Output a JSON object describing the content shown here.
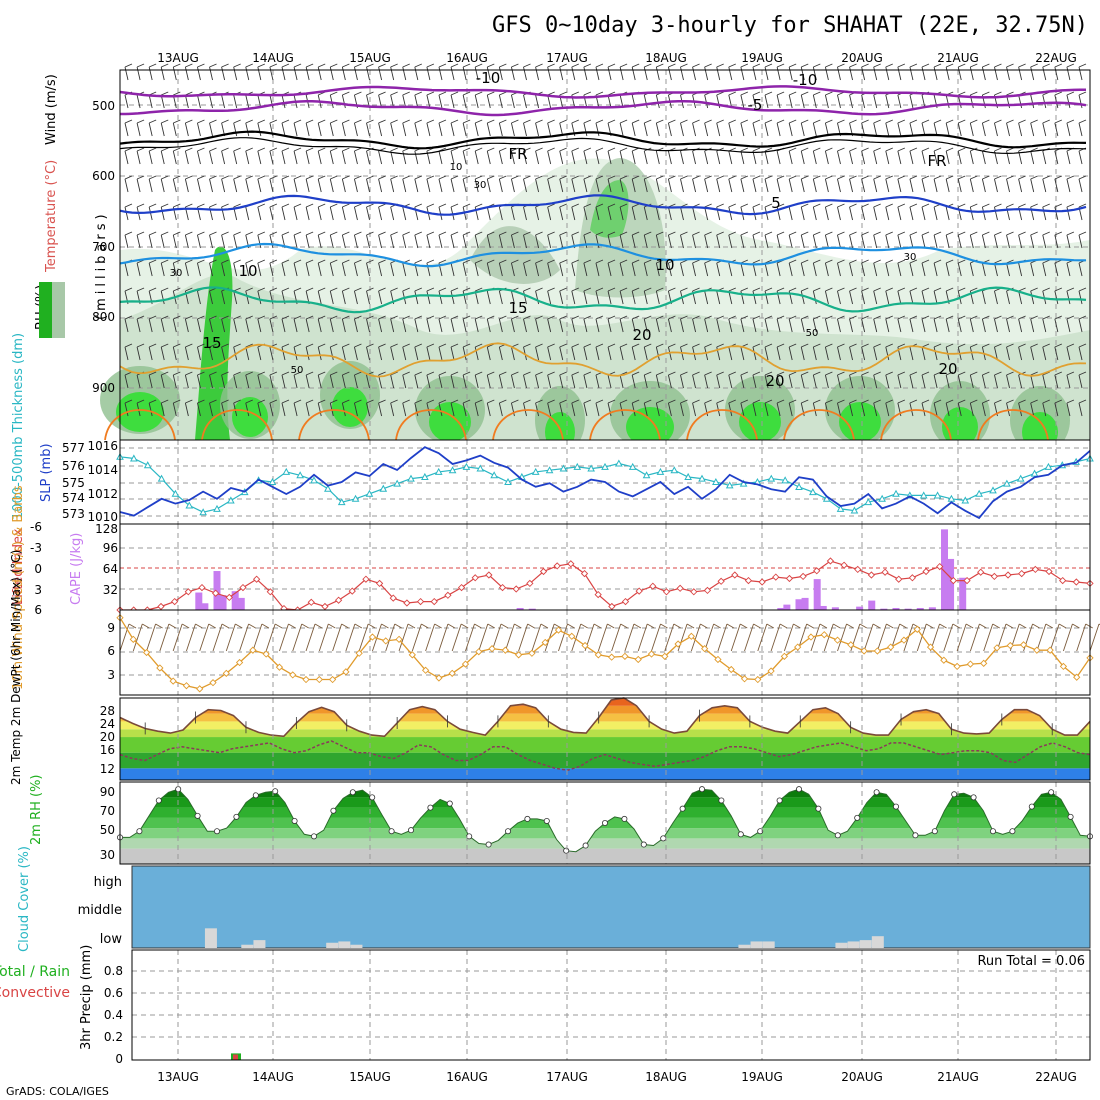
{
  "title": "GFS 0~10day 3-hourly for SHAHAT (22E, 32.75N)",
  "credit": "GrADS: COLA/IGES",
  "dates": [
    "13AUG",
    "14AUG",
    "15AUG",
    "16AUG",
    "17AUG",
    "18AUG",
    "19AUG",
    "20AUG",
    "21AUG",
    "22AUG"
  ],
  "colors": {
    "frame": "#000000",
    "grid": "#9a9a9a",
    "sky_blue": "#6aafd9",
    "cloud_bar": "#d8d8d8",
    "cape": "#c77cf0",
    "lifted": "#d94444",
    "slp": "#1f3fc8",
    "thickness": "#2ab7c4",
    "wind_speed": "#e09b2c",
    "rh_green": "#20b020"
  },
  "panels": {
    "upper_air": {
      "ylabel_wind": "Wind (m/s)",
      "ylabel_temp": "Temperature (°C)",
      "ylabel_rh": "RH (%)",
      "ylabel_p": "(millibars)",
      "yticks": [
        "500",
        "600",
        "700",
        "800",
        "900"
      ],
      "contour_labels": [
        "-10",
        "-10",
        "-5",
        "FR",
        "FR",
        "5",
        "10",
        "10",
        "15",
        "15",
        "20",
        "20",
        "20",
        "30",
        "30",
        "50",
        "50",
        "10",
        "30"
      ]
    },
    "slp": {
      "ylabel_left": "1000-500mb Thickness (dm)",
      "ylabel_right": "SLP (mb)",
      "yticks_left": [
        "577",
        "576",
        "575",
        "574",
        "573"
      ],
      "yticks_right": [
        "1016",
        "1014",
        "1012",
        "1010"
      ]
    },
    "cape": {
      "ylabel_left": "Lifted Index",
      "ylabel_right": "CAPE (J/kg)",
      "yticks_left": [
        "-6",
        "-3",
        "0",
        "3",
        "6"
      ],
      "yticks_right": [
        "128",
        "96",
        "64",
        "32"
      ]
    },
    "wind": {
      "ylabel": "10m Wind Speed (m/s) & Barbs",
      "yticks": [
        "9",
        "6",
        "3"
      ]
    },
    "temp": {
      "ylabel": "2m Temp 2m DewPt (6hr Min/Max) (°C)",
      "yticks": [
        "28",
        "24",
        "20",
        "16",
        "12"
      ]
    },
    "rh": {
      "ylabel": "2m RH (%)",
      "yticks": [
        "90",
        "70",
        "50",
        "30"
      ]
    },
    "cloud": {
      "ylabel": "Cloud Cover (%)",
      "levels": [
        "high",
        "middle",
        "low"
      ]
    },
    "precip": {
      "ylabel": "3hr Precip (mm)",
      "legend_total": "Total / Rain",
      "legend_conv": "Convective",
      "run_total": "Run Total = 0.06",
      "yticks": [
        "0.8",
        "0.6",
        "0.4",
        "0.2",
        "0"
      ]
    }
  },
  "chart_data": [
    {
      "type": "line",
      "title": "1000-500mb Thickness (dm)",
      "ylim": [
        572.5,
        577.5
      ],
      "series": [
        {
          "name": "1000-500mb Thickness",
          "values": [
            576.5,
            576.4,
            576.0,
            575.2,
            574.3,
            573.6,
            573.2,
            573.4,
            573.9,
            574.4,
            575.1,
            575.0,
            575.6,
            575.4,
            575.1,
            574.6,
            573.8,
            574.0,
            574.3,
            574.6,
            574.9,
            575.2,
            575.3,
            575.6,
            575.7,
            575.9,
            575.8,
            575.4,
            575.0,
            575.3,
            575.6,
            575.7,
            575.8,
            575.9,
            575.8,
            575.9,
            576.1,
            575.9,
            575.4,
            575.6,
            575.7,
            575.3,
            575.2,
            575.0,
            574.8,
            574.9,
            575.0,
            575.2,
            575.1,
            574.7,
            574.4,
            574.0,
            573.4,
            573.3,
            573.8,
            574.0,
            574.3,
            574.2,
            574.2,
            574.2,
            574.0,
            573.9,
            574.3,
            574.5,
            574.9,
            575.2,
            575.5,
            575.9,
            576.0,
            576.2,
            576.4
          ]
        }
      ]
    },
    {
      "type": "line",
      "title": "SLP (mb)",
      "ylim": [
        1009.5,
        1016.5
      ],
      "series": [
        {
          "name": "SLP",
          "values": [
            1010.5,
            1010.2,
            1010.9,
            1011.6,
            1011.2,
            1011.5,
            1012.2,
            1011.6,
            1012.5,
            1012.2,
            1013.2,
            1012.6,
            1012.0,
            1012.6,
            1013.6,
            1012.7,
            1013.0,
            1013.8,
            1013.5,
            1014.5,
            1014.0,
            1015.0,
            1015.9,
            1015.4,
            1014.5,
            1014.8,
            1015.2,
            1014.6,
            1014.2,
            1013.2,
            1012.6,
            1012.9,
            1012.2,
            1012.6,
            1013.2,
            1013.0,
            1012.2,
            1011.8,
            1012.4,
            1013.0,
            1012.0,
            1012.6,
            1011.6,
            1012.4,
            1013.6,
            1013.0,
            1012.8,
            1012.4,
            1012.2,
            1013.4,
            1013.2,
            1011.8,
            1011.0,
            1011.2,
            1012.0,
            1010.8,
            1011.2,
            1011.8,
            1011.2,
            1010.4,
            1011.3,
            1010.6,
            1010.0,
            1011.4,
            1012.2,
            1012.6,
            1013.4,
            1013.6,
            1014.4,
            1014.6,
            1015.6
          ]
        }
      ]
    },
    {
      "type": "line",
      "title": "Lifted Index",
      "ylim": [
        -6,
        6
      ],
      "series": [
        {
          "name": "Lifted Index",
          "values": [
            6,
            6,
            6,
            5.5,
            4.8,
            3.4,
            2.8,
            3.6,
            4.2,
            2.8,
            1.6,
            3.4,
            5.8,
            6,
            4.9,
            5.5,
            4.6,
            3.3,
            1.6,
            2.2,
            4.3,
            5.0,
            4.8,
            4.8,
            3.9,
            2.8,
            1.4,
            1.0,
            2.8,
            3.0,
            2.2,
            0.5,
            -0.3,
            -0.6,
            0.8,
            3.8,
            5.5,
            4.8,
            3.3,
            2.6,
            3.4,
            2.9,
            3.4,
            3.2,
            1.9,
            1.0,
            1.8,
            2.0,
            1.3,
            1.5,
            1.2,
            0.4,
            -1.0,
            -0.4,
            0.2,
            1.0,
            0.6,
            1.6,
            1.4,
            0.5,
            -0.2,
            1.8,
            1.8,
            0.6,
            1.2,
            1.0,
            0.8,
            0.2,
            0.5,
            1.8,
            2.0,
            2.2
          ]
        }
      ]
    },
    {
      "type": "bar",
      "title": "CAPE (J/kg)",
      "ylim": [
        0,
        128
      ],
      "bars": [
        {
          "x": 6.5,
          "value": 26
        },
        {
          "x": 7.0,
          "value": 10
        },
        {
          "x": 8.0,
          "value": 58
        },
        {
          "x": 8.5,
          "value": 22
        },
        {
          "x": 9.5,
          "value": 28
        },
        {
          "x": 10.0,
          "value": 18
        },
        {
          "x": 33.0,
          "value": 3
        },
        {
          "x": 34.0,
          "value": 2
        },
        {
          "x": 54.5,
          "value": 3
        },
        {
          "x": 55.0,
          "value": 8
        },
        {
          "x": 56.0,
          "value": 16
        },
        {
          "x": 56.5,
          "value": 18
        },
        {
          "x": 57.5,
          "value": 46
        },
        {
          "x": 58.0,
          "value": 6
        },
        {
          "x": 59.0,
          "value": 4
        },
        {
          "x": 61.0,
          "value": 5
        },
        {
          "x": 62.0,
          "value": 14
        },
        {
          "x": 63.0,
          "value": 2
        },
        {
          "x": 64.0,
          "value": 3
        },
        {
          "x": 65.0,
          "value": 2
        },
        {
          "x": 66.0,
          "value": 3
        },
        {
          "x": 67.0,
          "value": 4
        },
        {
          "x": 68.0,
          "value": 120
        },
        {
          "x": 68.5,
          "value": 76
        },
        {
          "x": 69.5,
          "value": 48
        }
      ]
    },
    {
      "type": "line",
      "title": "10m Wind Speed (m/s)",
      "ylim": [
        0,
        11
      ],
      "series": [
        {
          "name": "10m Wind Speed",
          "values": [
            10.0,
            7.2,
            5.5,
            3.5,
            1.8,
            1.2,
            0.8,
            1.6,
            2.8,
            4.2,
            5.8,
            5.3,
            3.6,
            2.6,
            2.0,
            2.0,
            2.0,
            3.0,
            5.4,
            7.5,
            7.0,
            7.2,
            5.2,
            3.2,
            2.2,
            2.8,
            4.0,
            5.6,
            6.0,
            5.8,
            5.2,
            5.4,
            6.8,
            8.4,
            7.6,
            6.4,
            5.2,
            4.9,
            5.0,
            4.6,
            5.3,
            5.0,
            6.6,
            7.6,
            6.0,
            4.6,
            3.3,
            2.1,
            2.0,
            3.1,
            5.0,
            6.2,
            7.5,
            7.8,
            7.1,
            6.5,
            5.7,
            5.7,
            6.2,
            7.1,
            8.5,
            6.2,
            4.5,
            3.7,
            4.0,
            4.1,
            6.1,
            6.4,
            6.5,
            5.8,
            5.8,
            3.7,
            2.3,
            4.8
          ]
        }
      ]
    },
    {
      "type": "area",
      "title": "2m Temp / DewPt (°C)",
      "ylim": [
        9,
        30
      ],
      "series": [
        {
          "name": "2m Temp",
          "values": [
            25.0,
            23.5,
            22.2,
            21.5,
            21.0,
            21.8,
            25.0,
            27.0,
            26.8,
            25.5,
            22.5,
            21.2,
            20.5,
            20.2,
            23.6,
            26.5,
            27.6,
            26.5,
            23.0,
            21.5,
            20.5,
            20.2,
            23.6,
            27.0,
            27.8,
            27.0,
            24.0,
            22.0,
            21.2,
            20.5,
            24.0,
            28.0,
            28.4,
            27.5,
            24.0,
            22.0,
            21.2,
            21.0,
            25.0,
            29.5,
            30.0,
            28.0,
            24.0,
            22.0,
            21.0,
            21.5,
            25.5,
            27.5,
            28.0,
            27.5,
            24.0,
            22.5,
            21.5,
            21.0,
            24.0,
            27.0,
            27.5,
            26.0,
            22.5,
            21.0,
            20.5,
            20.5,
            24.5,
            26.5,
            27.0,
            26.0,
            22.0,
            21.0,
            20.8,
            21.0,
            24.5,
            27.0,
            27.0,
            25.5,
            22.0,
            20.5,
            20.5,
            24.0
          ]
        },
        {
          "name": "2m DewPt",
          "values": [
            15.5,
            14.5,
            14.0,
            15.5,
            17.0,
            17.5,
            17.0,
            16.5,
            16.0,
            17.0,
            17.5,
            18.0,
            18.5,
            17.0,
            16.0,
            16.5,
            18.0,
            19.0,
            17.5,
            16.0,
            16.0,
            15.0,
            14.5,
            16.0,
            18.0,
            17.5,
            15.5,
            14.0,
            14.0,
            15.5,
            17.5,
            17.5,
            15.5,
            14.0,
            13.0,
            12.0,
            11.5,
            12.5,
            14.5,
            15.5,
            14.5,
            13.5,
            13.0,
            12.5,
            13.0,
            13.5,
            14.0,
            15.0,
            16.5,
            17.5,
            17.5,
            17.0,
            16.0,
            15.0,
            15.5,
            16.5,
            17.5,
            18.0,
            18.5,
            17.5,
            16.5,
            17.0,
            18.5,
            18.5,
            17.5,
            16.5,
            15.5,
            16.0,
            16.5,
            16.5,
            16.0,
            14.0,
            13.5,
            15.5,
            17.5,
            18.5,
            17.5,
            16.0,
            15.5
          ]
        }
      ]
    },
    {
      "type": "area",
      "title": "2m RH (%)",
      "ylim": [
        20,
        100
      ],
      "series": [
        {
          "name": "2m RH",
          "values": [
            46,
            46,
            52,
            67,
            82,
            90,
            93,
            83,
            67,
            52,
            52,
            55,
            66,
            80,
            87,
            90,
            91,
            80,
            62,
            49,
            47,
            53,
            72,
            84,
            90,
            92,
            85,
            68,
            52,
            49,
            53,
            65,
            75,
            83,
            79,
            64,
            47,
            40,
            39,
            43,
            52,
            60,
            64,
            64,
            62,
            44,
            33,
            32,
            38,
            52,
            60,
            66,
            64,
            54,
            39,
            38,
            45,
            60,
            74,
            89,
            93,
            92,
            82,
            67,
            49,
            46,
            52,
            66,
            82,
            90,
            93,
            88,
            74,
            53,
            48,
            52,
            65,
            80,
            90,
            88,
            76,
            62,
            48,
            48,
            52,
            72,
            88,
            89,
            85,
            72,
            52,
            49,
            52,
            62,
            76,
            88,
            90,
            83,
            66,
            48,
            47
          ]
        }
      ]
    },
    {
      "type": "bar",
      "title": "Cloud Cover (%) - low",
      "ylim": [
        0,
        100
      ],
      "bars": [
        {
          "x": 7.5,
          "value": 30
        },
        {
          "x": 10.5,
          "value": 5
        },
        {
          "x": 11.5,
          "value": 12
        },
        {
          "x": 17.5,
          "value": 8
        },
        {
          "x": 18.5,
          "value": 10
        },
        {
          "x": 19.5,
          "value": 5
        },
        {
          "x": 51.5,
          "value": 5
        },
        {
          "x": 52.5,
          "value": 10
        },
        {
          "x": 53.5,
          "value": 10
        },
        {
          "x": 59.5,
          "value": 8
        },
        {
          "x": 60.5,
          "value": 10
        },
        {
          "x": 61.5,
          "value": 12
        },
        {
          "x": 62.5,
          "value": 18
        }
      ]
    },
    {
      "type": "bar",
      "title": "3hr Precip (mm)",
      "ylim": [
        0,
        1.0
      ],
      "series": [
        {
          "name": "Total / Rain",
          "bars": [
            {
              "x": 8.5,
              "value": 0.06
            }
          ]
        },
        {
          "name": "Convective",
          "bars": [
            {
              "x": 8.5,
              "value": 0.05
            }
          ]
        }
      ]
    }
  ]
}
